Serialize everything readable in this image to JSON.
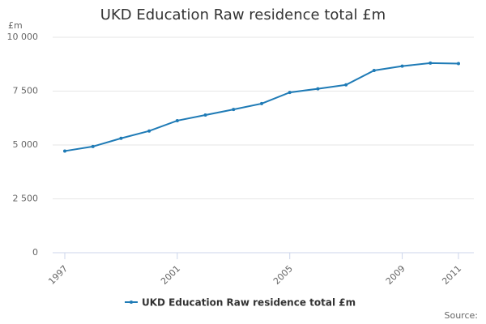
{
  "chart_data": {
    "type": "line",
    "title": "UKD Education Raw residence total £m",
    "y_label": "£m",
    "source": "Source:",
    "x": [
      1997,
      1998,
      1999,
      2000,
      2001,
      2002,
      2003,
      2004,
      2005,
      2006,
      2007,
      2008,
      2009,
      2010,
      2011
    ],
    "xlim": [
      1997,
      2011
    ],
    "xticks": [
      1997,
      2001,
      2005,
      2009,
      2011
    ],
    "ylim": [
      0,
      10000
    ],
    "yticks": [
      0,
      {
        "value": 2500,
        "label": "2 500"
      },
      {
        "value": 5000,
        "label": "5 000"
      },
      {
        "value": 7500,
        "label": "7 500"
      },
      {
        "value": 10000,
        "label": "10 000"
      }
    ],
    "grid": true,
    "series": [
      {
        "name": "UKD Education Raw residence total £m",
        "color": "#1f7bb6",
        "values": [
          4720,
          4930,
          5310,
          5650,
          6130,
          6390,
          6650,
          6920,
          7440,
          7610,
          7790,
          8460,
          8660,
          8800,
          8780
        ]
      }
    ]
  }
}
